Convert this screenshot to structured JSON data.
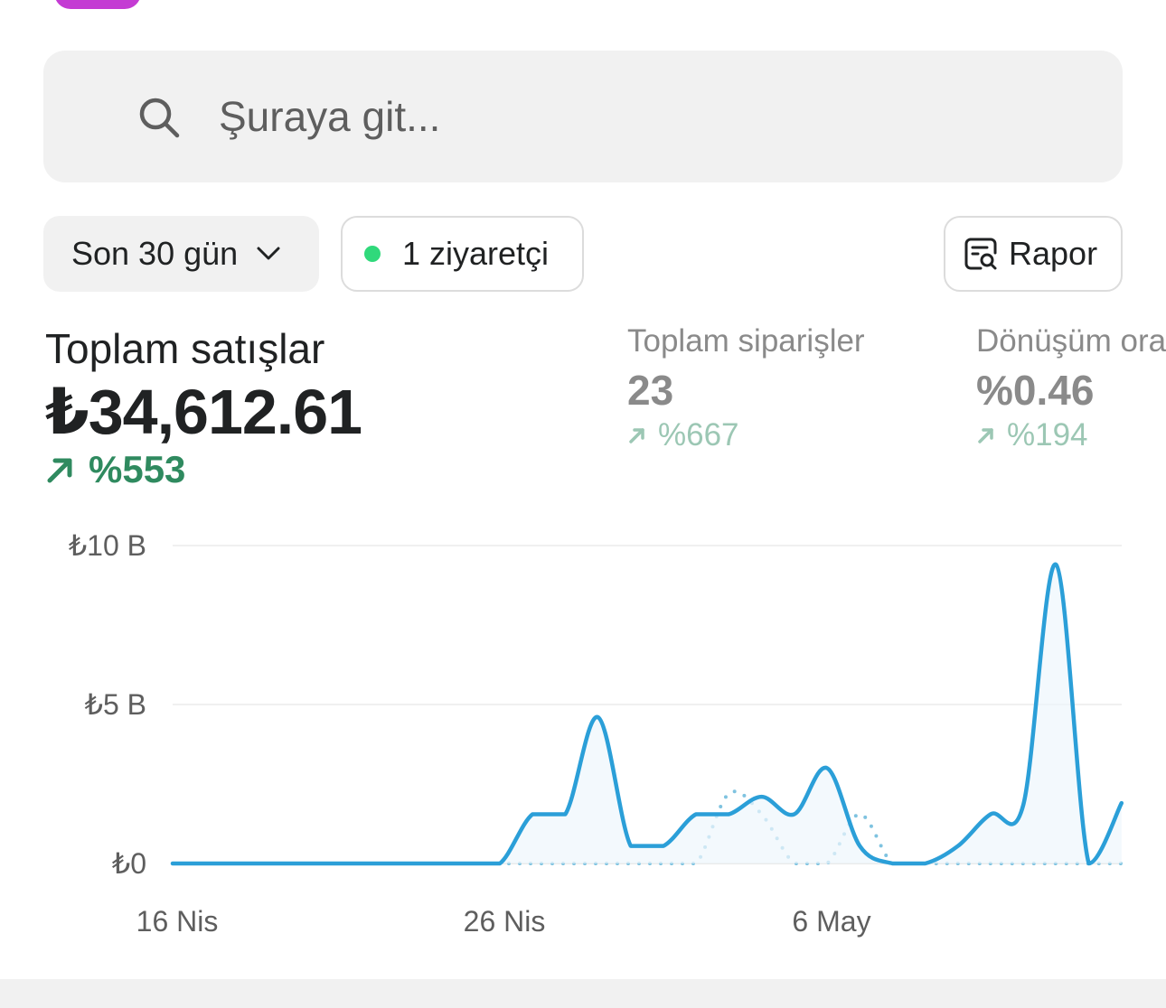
{
  "search": {
    "placeholder": "Şuraya git..."
  },
  "filters": {
    "date_range": "Son 30 gün",
    "visitors": "1 ziyaretçi",
    "report": "Rapor"
  },
  "metrics": {
    "total_sales": {
      "label": "Toplam satışlar",
      "value": "₺34,612.61",
      "change": "%553"
    },
    "total_orders": {
      "label": "Toplam siparişler",
      "value": "23",
      "change": "%667"
    },
    "conversion_rate": {
      "label": "Dönüşüm oranı",
      "value": "%0.46",
      "change": "%194"
    }
  },
  "icons": {
    "search": "search-icon",
    "chevron": "chevron-down-icon",
    "visitor_status": "green-dot-icon",
    "report": "report-icon",
    "trend": "arrow-up-right-icon"
  },
  "colors": {
    "accent": "#c43bd3",
    "line_current": "#2b9fd8",
    "line_previous": "#7fc3e0",
    "positive": "#2f8a5f",
    "live_dot": "#30d97b"
  },
  "chart_data": {
    "type": "line",
    "x_tick_labels": [
      "16 Nis",
      "26 Nis",
      "6 May"
    ],
    "y_tick_labels": [
      "₺10 B",
      "₺5 B",
      "₺0"
    ],
    "ylim": [
      0,
      10000
    ],
    "y_ticks": [
      0,
      5000,
      10000
    ],
    "x_tick_days": [
      0,
      10,
      20
    ],
    "grid": true,
    "series": [
      {
        "style": "solid",
        "days": [
          0,
          1,
          2,
          3,
          4,
          5,
          6,
          7,
          8,
          9,
          10,
          11,
          12,
          13,
          14,
          15,
          16,
          17,
          18,
          19,
          20,
          21,
          22,
          23,
          24,
          25,
          26,
          27,
          28,
          29
        ],
        "values": [
          0,
          0,
          0,
          0,
          0,
          0,
          0,
          0,
          0,
          0,
          0,
          1550,
          1550,
          4600,
          550,
          550,
          1550,
          1550,
          2100,
          1550,
          3000,
          550,
          0,
          0,
          550,
          1550,
          1850,
          9400,
          0,
          1900
        ]
      },
      {
        "style": "dotted",
        "days": [
          0,
          1,
          2,
          3,
          4,
          5,
          6,
          7,
          8,
          9,
          10,
          11,
          12,
          13,
          14,
          15,
          16,
          17,
          18,
          19,
          20,
          21,
          22,
          23,
          24,
          25,
          26,
          27,
          28,
          29
        ],
        "values": [
          0,
          0,
          0,
          0,
          0,
          0,
          0,
          0,
          0,
          0,
          0,
          0,
          0,
          0,
          0,
          0,
          0,
          2200,
          1550,
          0,
          0,
          1550,
          0,
          0,
          0,
          0,
          0,
          0,
          0,
          0
        ]
      }
    ]
  }
}
